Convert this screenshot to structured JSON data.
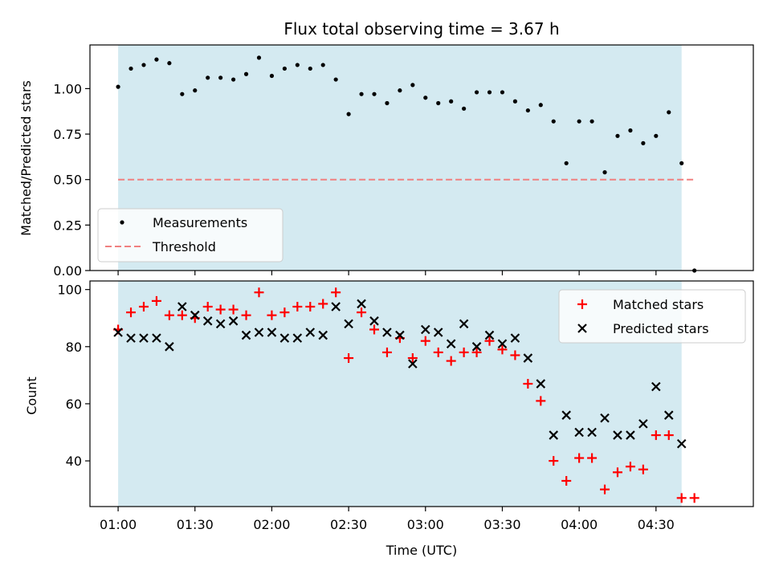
{
  "colors": {
    "shade": "#d4eaf1",
    "measurement": "#000000",
    "threshold": "#f08080",
    "matched": "#ff0000",
    "predicted": "#000000"
  },
  "chart_data": [
    {
      "type": "scatter",
      "title": "Flux total observing time = 3.67 h",
      "xlabel": "",
      "ylabel": "Matched/Predicted stars",
      "xlim": [
        "00:49",
        "05:08"
      ],
      "ylim": [
        0,
        1.24
      ],
      "yticks": [
        "0.00",
        "0.25",
        "0.50",
        "0.75",
        "1.00"
      ],
      "shaded_interval": [
        "01:00",
        "04:40"
      ],
      "legend_position": "lower-left",
      "series": [
        {
          "name": "Measurements",
          "marker": "dot",
          "x": [
            "01:00",
            "01:05",
            "01:10",
            "01:15",
            "01:20",
            "01:25",
            "01:30",
            "01:35",
            "01:40",
            "01:45",
            "01:50",
            "01:55",
            "02:00",
            "02:05",
            "02:10",
            "02:15",
            "02:20",
            "02:25",
            "02:30",
            "02:35",
            "02:40",
            "02:45",
            "02:50",
            "02:55",
            "03:00",
            "03:05",
            "03:10",
            "03:15",
            "03:20",
            "03:25",
            "03:30",
            "03:35",
            "03:40",
            "03:45",
            "03:50",
            "03:55",
            "04:00",
            "04:05",
            "04:10",
            "04:15",
            "04:20",
            "04:25",
            "04:30",
            "04:35",
            "04:40",
            "04:45"
          ],
          "y": [
            1.01,
            1.11,
            1.13,
            1.16,
            1.14,
            0.97,
            0.99,
            1.06,
            1.06,
            1.05,
            1.08,
            1.17,
            1.07,
            1.11,
            1.13,
            1.11,
            1.13,
            1.05,
            0.86,
            0.97,
            0.97,
            0.92,
            0.99,
            1.02,
            0.95,
            0.92,
            0.93,
            0.89,
            0.98,
            0.98,
            0.98,
            0.93,
            0.88,
            0.91,
            0.82,
            0.59,
            0.82,
            0.82,
            0.54,
            0.74,
            0.77,
            0.7,
            0.74,
            0.87,
            0.59,
            0.0
          ]
        },
        {
          "name": "Threshold",
          "style": "dashed",
          "x": [
            "01:00",
            "04:45"
          ],
          "y": [
            0.5,
            0.5
          ]
        }
      ]
    },
    {
      "type": "scatter",
      "title": "",
      "xlabel": "Time (UTC)",
      "ylabel": "Count",
      "xlim": [
        "00:49",
        "05:08"
      ],
      "ylim": [
        24,
        103
      ],
      "xticks": [
        "01:00",
        "01:30",
        "02:00",
        "02:30",
        "03:00",
        "03:30",
        "04:00",
        "04:30"
      ],
      "yticks": [
        "40",
        "60",
        "80",
        "100"
      ],
      "shaded_interval": [
        "01:00",
        "04:40"
      ],
      "legend_position": "upper-right",
      "series": [
        {
          "name": "Matched stars",
          "marker": "plus",
          "x": [
            "01:00",
            "01:05",
            "01:10",
            "01:15",
            "01:20",
            "01:25",
            "01:30",
            "01:35",
            "01:40",
            "01:45",
            "01:50",
            "01:55",
            "02:00",
            "02:05",
            "02:10",
            "02:15",
            "02:20",
            "02:25",
            "02:30",
            "02:35",
            "02:40",
            "02:45",
            "02:50",
            "02:55",
            "03:00",
            "03:05",
            "03:10",
            "03:15",
            "03:20",
            "03:25",
            "03:30",
            "03:35",
            "03:40",
            "03:45",
            "03:50",
            "03:55",
            "04:00",
            "04:05",
            "04:10",
            "04:15",
            "04:20",
            "04:25",
            "04:30",
            "04:35",
            "04:40",
            "04:45"
          ],
          "y": [
            86,
            92,
            94,
            96,
            91,
            91,
            90,
            94,
            93,
            93,
            91,
            99,
            91,
            92,
            94,
            94,
            95,
            99,
            76,
            92,
            86,
            78,
            83,
            76,
            82,
            78,
            75,
            78,
            78,
            82,
            79,
            77,
            67,
            61,
            40,
            33,
            41,
            41,
            30,
            36,
            38,
            37,
            49,
            49,
            27,
            27
          ]
        },
        {
          "name": "Predicted stars",
          "marker": "x",
          "x": [
            "01:00",
            "01:05",
            "01:10",
            "01:15",
            "01:20",
            "01:25",
            "01:30",
            "01:35",
            "01:40",
            "01:45",
            "01:50",
            "01:55",
            "02:00",
            "02:05",
            "02:10",
            "02:15",
            "02:20",
            "02:25",
            "02:30",
            "02:35",
            "02:40",
            "02:45",
            "02:50",
            "02:55",
            "03:00",
            "03:05",
            "03:10",
            "03:15",
            "03:20",
            "03:25",
            "03:30",
            "03:35",
            "03:40",
            "03:45",
            "03:50",
            "03:55",
            "04:00",
            "04:05",
            "04:10",
            "04:15",
            "04:20",
            "04:25",
            "04:30",
            "04:35",
            "04:40"
          ],
          "y": [
            85,
            83,
            83,
            83,
            80,
            94,
            91,
            89,
            88,
            89,
            84,
            85,
            85,
            83,
            83,
            85,
            84,
            94,
            88,
            95,
            89,
            85,
            84,
            74,
            86,
            85,
            81,
            88,
            80,
            84,
            81,
            83,
            76,
            67,
            49,
            56,
            50,
            50,
            55,
            49,
            49,
            53,
            66,
            56,
            46
          ]
        }
      ]
    }
  ]
}
